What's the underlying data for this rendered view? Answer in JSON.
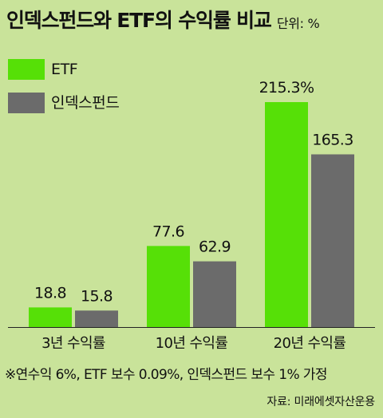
{
  "header": {
    "title": "인덱스펀드와 ETF의 수익률 비교",
    "unit": "단위: %"
  },
  "legend": [
    {
      "label": "ETF",
      "color": "#56e007"
    },
    {
      "label": "인덱스펀드",
      "color": "#6b6b6b"
    }
  ],
  "chart_data": {
    "type": "bar",
    "categories": [
      "3년 수익률",
      "10년 수익률",
      "20년 수익률"
    ],
    "series": [
      {
        "name": "ETF",
        "values": [
          18.8,
          77.6,
          215.3
        ],
        "labels": [
          "18.8",
          "77.6",
          "215.3%"
        ],
        "color": "#56e007"
      },
      {
        "name": "인덱스펀드",
        "values": [
          15.8,
          62.9,
          165.3
        ],
        "labels": [
          "15.8",
          "62.9",
          "165.3"
        ],
        "color": "#6b6b6b"
      }
    ],
    "title": "인덱스펀드와 ETF의 수익률 비교",
    "xlabel": "",
    "ylabel": "",
    "unit": "%",
    "ylim": [
      0,
      215.3
    ],
    "grid": false,
    "legend_position": "top-left"
  },
  "footnote": "※연수익 6%, ETF 보수 0.09%, 인덱스펀드 보수 1% 가정",
  "source": "자료: 미래에셋자산운용"
}
